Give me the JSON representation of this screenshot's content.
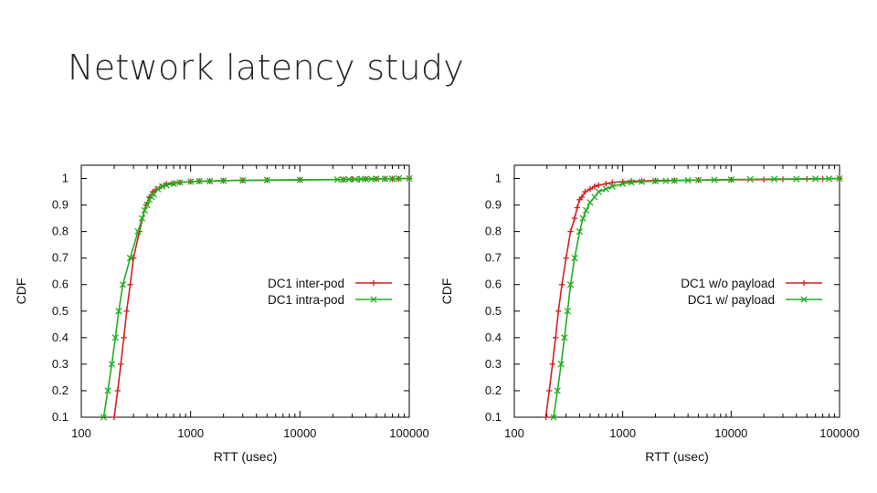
{
  "slide": {
    "title": "Network latency study"
  },
  "colors": {
    "red": "#d42121",
    "green": "#1fae1f",
    "axis": "#000000"
  },
  "chart_data": [
    {
      "type": "line",
      "xscale": "log",
      "xlabel": "RTT (usec)",
      "ylabel": "CDF",
      "xlim": [
        100,
        100000
      ],
      "ylim": [
        0.1,
        1.05
      ],
      "xticks": [
        100,
        1000,
        10000,
        100000
      ],
      "xtick_labels": [
        "100",
        "1000",
        "10000",
        "100000"
      ],
      "yticks": [
        0.1,
        0.2,
        0.3,
        0.4,
        0.5,
        0.6,
        0.7,
        0.8,
        0.9,
        1
      ],
      "ytick_labels": [
        "0.1",
        "0.2",
        "0.3",
        "0.4",
        "0.5",
        "0.6",
        "0.7",
        "0.8",
        "0.9",
        "1"
      ],
      "legend_position": "center-right",
      "series": [
        {
          "name": "DC1 inter-pod",
          "color": "#d42121",
          "marker": "plus",
          "x": [
            200,
            215,
            230,
            245,
            260,
            280,
            300,
            340,
            390,
            420,
            450,
            490,
            540,
            600,
            700,
            800,
            1000,
            1200,
            1500,
            2000,
            3000,
            5000,
            10000,
            25000,
            30000,
            35000,
            40000,
            50000,
            60000,
            70000,
            80000,
            100000
          ],
          "y": [
            0.1,
            0.2,
            0.3,
            0.4,
            0.5,
            0.6,
            0.7,
            0.8,
            0.9,
            0.93,
            0.95,
            0.96,
            0.97,
            0.98,
            0.983,
            0.985,
            0.988,
            0.99,
            0.99,
            0.992,
            0.993,
            0.994,
            0.995,
            0.996,
            0.997,
            0.997,
            0.998,
            0.998,
            0.999,
            0.999,
            0.999,
            1.0
          ]
        },
        {
          "name": "DC1 intra-pod",
          "color": "#1fae1f",
          "marker": "x",
          "x": [
            160,
            175,
            190,
            205,
            220,
            240,
            280,
            330,
            360,
            380,
            400,
            420,
            440,
            460,
            500,
            550,
            600,
            700,
            800,
            1000,
            1200,
            1500,
            2000,
            3000,
            5000,
            10000,
            22000,
            25000,
            28000,
            32000,
            36000,
            40000,
            45000,
            50000,
            60000,
            70000,
            80000,
            100000
          ],
          "y": [
            0.1,
            0.2,
            0.3,
            0.4,
            0.5,
            0.6,
            0.7,
            0.8,
            0.85,
            0.88,
            0.9,
            0.92,
            0.93,
            0.94,
            0.96,
            0.97,
            0.975,
            0.98,
            0.985,
            0.988,
            0.99,
            0.99,
            0.992,
            0.993,
            0.994,
            0.995,
            0.996,
            0.996,
            0.997,
            0.997,
            0.998,
            0.998,
            0.998,
            0.999,
            0.999,
            0.999,
            1.0,
            1.0
          ]
        }
      ]
    },
    {
      "type": "line",
      "xscale": "log",
      "xlabel": "RTT (usec)",
      "ylabel": "CDF",
      "xlim": [
        100,
        100000
      ],
      "ylim": [
        0.1,
        1.05
      ],
      "xticks": [
        100,
        1000,
        10000,
        100000
      ],
      "xtick_labels": [
        "100",
        "1000",
        "10000",
        "100000"
      ],
      "yticks": [
        0.1,
        0.2,
        0.3,
        0.4,
        0.5,
        0.6,
        0.7,
        0.8,
        0.9,
        1
      ],
      "ytick_labels": [
        "0.1",
        "0.2",
        "0.3",
        "0.4",
        "0.5",
        "0.6",
        "0.7",
        "0.8",
        "0.9",
        "1"
      ],
      "legend_position": "center-right",
      "series": [
        {
          "name": "DC1 w/o payload",
          "color": "#d42121",
          "marker": "plus",
          "x": [
            195,
            210,
            225,
            240,
            255,
            275,
            300,
            330,
            360,
            380,
            400,
            420,
            450,
            500,
            550,
            600,
            700,
            800,
            1000,
            1200,
            1500,
            2000,
            3000,
            5000,
            10000,
            20000,
            30000,
            50000,
            70000,
            100000
          ],
          "y": [
            0.1,
            0.2,
            0.3,
            0.4,
            0.5,
            0.6,
            0.7,
            0.8,
            0.85,
            0.89,
            0.92,
            0.93,
            0.95,
            0.96,
            0.97,
            0.975,
            0.98,
            0.985,
            0.988,
            0.99,
            0.991,
            0.992,
            0.993,
            0.994,
            0.995,
            0.996,
            0.997,
            0.998,
            0.999,
            1.0
          ]
        },
        {
          "name": "DC1 w/ payload",
          "color": "#1fae1f",
          "marker": "x",
          "x": [
            230,
            250,
            270,
            290,
            310,
            330,
            360,
            400,
            430,
            460,
            500,
            550,
            600,
            700,
            800,
            1000,
            1200,
            1500,
            2000,
            2500,
            3000,
            4000,
            5000,
            7000,
            10000,
            15000,
            25000,
            40000,
            60000,
            80000,
            100000
          ],
          "y": [
            0.1,
            0.2,
            0.3,
            0.4,
            0.5,
            0.6,
            0.7,
            0.8,
            0.85,
            0.88,
            0.91,
            0.93,
            0.95,
            0.96,
            0.97,
            0.98,
            0.985,
            0.988,
            0.99,
            0.991,
            0.992,
            0.993,
            0.994,
            0.995,
            0.996,
            0.997,
            0.998,
            0.998,
            0.999,
            0.999,
            1.0
          ]
        }
      ]
    }
  ]
}
